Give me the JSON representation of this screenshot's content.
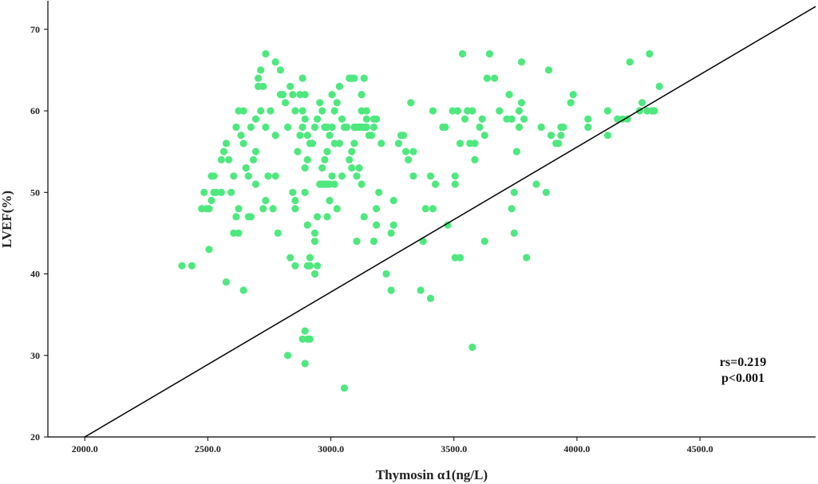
{
  "chart_data": {
    "type": "scatter",
    "xlabel": "Thymosin α1(ng/L)",
    "ylabel": "LVEF(%)",
    "xlim": [
      1850,
      4970
    ],
    "ylim": [
      20,
      73.5
    ],
    "x_ticks": [
      2000,
      2500,
      3000,
      3500,
      4000,
      4500
    ],
    "x_tick_labels": [
      "2000.0",
      "2500.0",
      "3000.0",
      "3500.0",
      "4000.0",
      "4500.0"
    ],
    "y_ticks": [
      20,
      30,
      40,
      50,
      60,
      70
    ],
    "y_tick_labels": [
      "20",
      "30",
      "40",
      "50",
      "60",
      "70"
    ],
    "grid": false,
    "point_color": "#4ee87e",
    "line_color": "#000000",
    "fit_line": {
      "x": [
        2000,
        4970
      ],
      "y": [
        20,
        72.8
      ]
    },
    "annotations": [
      "rs=0.219",
      "p<0.001"
    ],
    "points": [
      [
        2395,
        41
      ],
      [
        2435,
        41
      ],
      [
        2505,
        43
      ],
      [
        2575,
        39
      ],
      [
        2645,
        38
      ],
      [
        2475,
        48
      ],
      [
        2495,
        48
      ],
      [
        2505,
        48
      ],
      [
        2485,
        50
      ],
      [
        2525,
        50
      ],
      [
        2515,
        49
      ],
      [
        2535,
        50
      ],
      [
        2555,
        50
      ],
      [
        2525,
        52
      ],
      [
        2515,
        52
      ],
      [
        2555,
        54
      ],
      [
        2565,
        55
      ],
      [
        2575,
        56
      ],
      [
        2585,
        54
      ],
      [
        2595,
        50
      ],
      [
        2605,
        45
      ],
      [
        2625,
        45
      ],
      [
        2615,
        47
      ],
      [
        2625,
        48
      ],
      [
        2605,
        52
      ],
      [
        2615,
        58
      ],
      [
        2635,
        57
      ],
      [
        2625,
        60
      ],
      [
        2645,
        60
      ],
      [
        2645,
        56
      ],
      [
        2655,
        53
      ],
      [
        2665,
        52
      ],
      [
        2665,
        47
      ],
      [
        2675,
        47
      ],
      [
        2685,
        54
      ],
      [
        2695,
        55
      ],
      [
        2675,
        58
      ],
      [
        2695,
        59
      ],
      [
        2715,
        60
      ],
      [
        2705,
        63
      ],
      [
        2705,
        64
      ],
      [
        2715,
        65
      ],
      [
        2735,
        67
      ],
      [
        2725,
        63
      ],
      [
        2735,
        58
      ],
      [
        2755,
        60
      ],
      [
        2745,
        52
      ],
      [
        2735,
        49
      ],
      [
        2725,
        48
      ],
      [
        2695,
        51
      ],
      [
        2765,
        48
      ],
      [
        2775,
        52
      ],
      [
        2785,
        45
      ],
      [
        2775,
        57
      ],
      [
        2795,
        62
      ],
      [
        2805,
        62
      ],
      [
        2775,
        66
      ],
      [
        2795,
        65
      ],
      [
        2815,
        61
      ],
      [
        2835,
        63
      ],
      [
        2825,
        58
      ],
      [
        2845,
        62
      ],
      [
        2855,
        60
      ],
      [
        2845,
        50
      ],
      [
        2855,
        48
      ],
      [
        2865,
        55
      ],
      [
        2875,
        57
      ],
      [
        2875,
        62
      ],
      [
        2885,
        60
      ],
      [
        2895,
        62
      ],
      [
        2895,
        59
      ],
      [
        2905,
        57
      ],
      [
        2905,
        54
      ],
      [
        2915,
        56
      ],
      [
        2925,
        56
      ],
      [
        2935,
        58
      ],
      [
        2945,
        59
      ],
      [
        2955,
        61
      ],
      [
        2965,
        60
      ],
      [
        2975,
        58
      ],
      [
        2985,
        58
      ],
      [
        2995,
        57
      ],
      [
        2985,
        55
      ],
      [
        2975,
        54
      ],
      [
        2965,
        53
      ],
      [
        2955,
        51
      ],
      [
        2965,
        51
      ],
      [
        2975,
        51
      ],
      [
        2985,
        51
      ],
      [
        2995,
        51
      ],
      [
        3005,
        52
      ],
      [
        3015,
        51
      ],
      [
        2995,
        49
      ],
      [
        2985,
        47
      ],
      [
        2945,
        47
      ],
      [
        2935,
        45
      ],
      [
        2935,
        44
      ],
      [
        2915,
        42
      ],
      [
        2915,
        41
      ],
      [
        2905,
        46
      ],
      [
        2895,
        50
      ],
      [
        2895,
        53
      ],
      [
        2885,
        58
      ],
      [
        2885,
        64
      ],
      [
        2855,
        49
      ],
      [
        2835,
        42
      ],
      [
        2855,
        41
      ],
      [
        2905,
        41
      ],
      [
        2935,
        40
      ],
      [
        2945,
        41
      ],
      [
        2905,
        32
      ],
      [
        2895,
        33
      ],
      [
        2885,
        32
      ],
      [
        2915,
        32
      ],
      [
        2895,
        29
      ],
      [
        2825,
        30
      ],
      [
        3055,
        26
      ],
      [
        3025,
        48
      ],
      [
        3045,
        52
      ],
      [
        3035,
        56
      ],
      [
        3015,
        56
      ],
      [
        3005,
        58
      ],
      [
        3015,
        60
      ],
      [
        3025,
        61
      ],
      [
        3035,
        63
      ],
      [
        3005,
        62
      ],
      [
        3045,
        59
      ],
      [
        3055,
        58
      ],
      [
        3065,
        58
      ],
      [
        3075,
        54
      ],
      [
        3085,
        55
      ],
      [
        3095,
        56
      ],
      [
        3095,
        58
      ],
      [
        3105,
        58
      ],
      [
        3115,
        58
      ],
      [
        3125,
        58
      ],
      [
        3135,
        58
      ],
      [
        3145,
        58
      ],
      [
        3145,
        59
      ],
      [
        3155,
        57
      ],
      [
        3175,
        58
      ],
      [
        3185,
        59
      ],
      [
        3175,
        59
      ],
      [
        3165,
        57
      ],
      [
        3115,
        53
      ],
      [
        3125,
        51
      ],
      [
        3105,
        52
      ],
      [
        3085,
        53
      ],
      [
        3075,
        64
      ],
      [
        3085,
        64
      ],
      [
        3095,
        64
      ],
      [
        3125,
        62
      ],
      [
        3135,
        64
      ],
      [
        3125,
        60
      ],
      [
        3145,
        60
      ],
      [
        3105,
        44
      ],
      [
        3135,
        47
      ],
      [
        3175,
        44
      ],
      [
        3185,
        46
      ],
      [
        3185,
        48
      ],
      [
        3195,
        50
      ],
      [
        3205,
        56
      ],
      [
        3245,
        45
      ],
      [
        3255,
        46
      ],
      [
        3225,
        40
      ],
      [
        3245,
        38
      ],
      [
        3255,
        49
      ],
      [
        3275,
        56
      ],
      [
        3285,
        57
      ],
      [
        3295,
        57
      ],
      [
        3305,
        55
      ],
      [
        3315,
        54
      ],
      [
        3325,
        61
      ],
      [
        3335,
        55
      ],
      [
        3335,
        52
      ],
      [
        3365,
        38
      ],
      [
        3375,
        44
      ],
      [
        3385,
        48
      ],
      [
        3405,
        37
      ],
      [
        3415,
        48
      ],
      [
        3405,
        52
      ],
      [
        3425,
        51
      ],
      [
        3415,
        60
      ],
      [
        3455,
        58
      ],
      [
        3465,
        58
      ],
      [
        3475,
        46
      ],
      [
        3495,
        60
      ],
      [
        3505,
        52
      ],
      [
        3505,
        51
      ],
      [
        3505,
        42
      ],
      [
        3515,
        60
      ],
      [
        3525,
        42
      ],
      [
        3525,
        56
      ],
      [
        3535,
        67
      ],
      [
        3545,
        59
      ],
      [
        3555,
        60
      ],
      [
        3565,
        56
      ],
      [
        3575,
        60
      ],
      [
        3575,
        31
      ],
      [
        3585,
        56
      ],
      [
        3585,
        54
      ],
      [
        3605,
        58
      ],
      [
        3615,
        59
      ],
      [
        3625,
        57
      ],
      [
        3625,
        44
      ],
      [
        3635,
        64
      ],
      [
        3645,
        67
      ],
      [
        3665,
        64
      ],
      [
        3685,
        60
      ],
      [
        3715,
        59
      ],
      [
        3725,
        62
      ],
      [
        3735,
        59
      ],
      [
        3735,
        48
      ],
      [
        3745,
        50
      ],
      [
        3745,
        45
      ],
      [
        3755,
        55
      ],
      [
        3765,
        58
      ],
      [
        3765,
        60
      ],
      [
        3775,
        61
      ],
      [
        3775,
        66
      ],
      [
        3785,
        59
      ],
      [
        3795,
        42
      ],
      [
        3835,
        51
      ],
      [
        3855,
        58
      ],
      [
        3875,
        50
      ],
      [
        3885,
        65
      ],
      [
        3895,
        57
      ],
      [
        3915,
        56
      ],
      [
        3925,
        56
      ],
      [
        3935,
        57
      ],
      [
        3935,
        58
      ],
      [
        3945,
        58
      ],
      [
        3975,
        61
      ],
      [
        3985,
        62
      ],
      [
        4045,
        58
      ],
      [
        4045,
        59
      ],
      [
        4125,
        57
      ],
      [
        4125,
        60
      ],
      [
        4165,
        59
      ],
      [
        4185,
        59
      ],
      [
        4205,
        59
      ],
      [
        4215,
        66
      ],
      [
        4255,
        60
      ],
      [
        4265,
        61
      ],
      [
        4285,
        60
      ],
      [
        4295,
        67
      ],
      [
        4305,
        60
      ],
      [
        4315,
        60
      ],
      [
        4335,
        63
      ]
    ]
  }
}
